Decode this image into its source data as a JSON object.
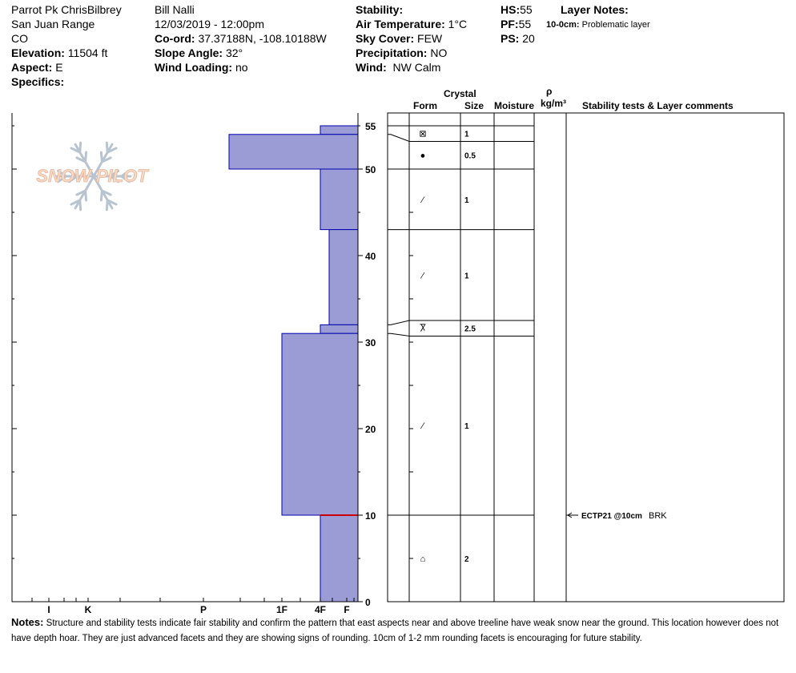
{
  "header": {
    "location": "Parrot Pk ChrisBilbrey",
    "range": "San Juan Range",
    "state": "CO",
    "elevation": {
      "label": "Elevation:",
      "value": "11504 ft"
    },
    "aspect": {
      "label": "Aspect:",
      "value": "E"
    },
    "specifics": {
      "label": "Specifics:",
      "value": ""
    },
    "observer": "Bill Nalli",
    "datetime": "12/03/2019 - 12:00pm",
    "coord": {
      "label": "Co-ord:",
      "value": "37.37188N, -108.10188W"
    },
    "slope_angle": {
      "label": "Slope Angle:",
      "value": "32°"
    },
    "wind_loading": {
      "label": "Wind Loading:",
      "value": "no"
    },
    "stability": {
      "label": "Stability:",
      "value": ""
    },
    "air_temp": {
      "label": "Air Temperature:",
      "value": "1°C"
    },
    "sky_cover": {
      "label": "Sky Cover:",
      "value": "FEW"
    },
    "precipitation": {
      "label": "Precipitation:",
      "value": "NO"
    },
    "wind": {
      "label": "Wind:",
      "value": "NW Calm"
    },
    "hs": {
      "label": "HS:",
      "value": "55"
    },
    "pf": {
      "label": "PF:",
      "value": "55"
    },
    "ps": {
      "label": "PS:",
      "value": "20"
    },
    "layer_notes": {
      "label": "Layer Notes:",
      "range": "10-0cm:",
      "text": "Problematic layer"
    }
  },
  "columns": {
    "crystal": "Crystal",
    "form": "Form",
    "size": "Size",
    "moisture": "Moisture",
    "rho": "ρ",
    "density": "kg/m³",
    "comments": "Stability tests & Layer comments"
  },
  "logo_text": "SNOW PILOT",
  "depth_ticks": [
    0,
    10,
    20,
    30,
    40,
    50,
    55
  ],
  "hardness_labels": [
    "I",
    "K",
    "P",
    "1F",
    "4F",
    "F"
  ],
  "colors": {
    "layer_fill": "#9b9bd6",
    "layer_stroke": "#0000aa",
    "problem_line": "#cc0000"
  },
  "hardness_layers": [
    {
      "top": 55,
      "bottom": 54,
      "hardness": "4F"
    },
    {
      "top": 54,
      "bottom": 50,
      "hardness": "P+"
    },
    {
      "top": 50,
      "bottom": 43,
      "hardness": "4F"
    },
    {
      "top": 43,
      "bottom": 32,
      "hardness": "4F+"
    },
    {
      "top": 32,
      "bottom": 31,
      "hardness": "4F"
    },
    {
      "top": 31,
      "bottom": 10,
      "hardness": "1F"
    },
    {
      "top": 10,
      "bottom": 0,
      "hardness": "4F"
    }
  ],
  "problem_depth": 10,
  "crystal_layers": [
    {
      "top": 55,
      "bottom": 53.2,
      "form": "⊠",
      "size": "1"
    },
    {
      "top": 53.2,
      "bottom": 50,
      "form": "●",
      "size": "0.5"
    },
    {
      "top": 50,
      "bottom": 43,
      "form": "⁄",
      "size": "1"
    },
    {
      "top": 43,
      "bottom": 32.5,
      "form": "⁄",
      "size": "1"
    },
    {
      "top": 32.5,
      "bottom": 30.7,
      "form": "Ⴟ",
      "size": "2.5"
    },
    {
      "top": 30.7,
      "bottom": 10,
      "form": "⁄",
      "size": "1"
    },
    {
      "top": 10,
      "bottom": 0,
      "form": "⌂",
      "size": "2"
    }
  ],
  "stability_tests": [
    {
      "depth": 10,
      "test": "ECTP21 @10cm",
      "result": "BRK"
    }
  ],
  "notes": {
    "label": "Notes:",
    "text": "Structure and stability tests indicate fair stability and confirm the pattern that east aspects near and above treeline have weak snow near the ground. This location however does not have depth hoar. They are just advanced facets and they are showing signs of rounding. 10cm of 1-2 mm rounding facets is encouraging for future stability."
  }
}
